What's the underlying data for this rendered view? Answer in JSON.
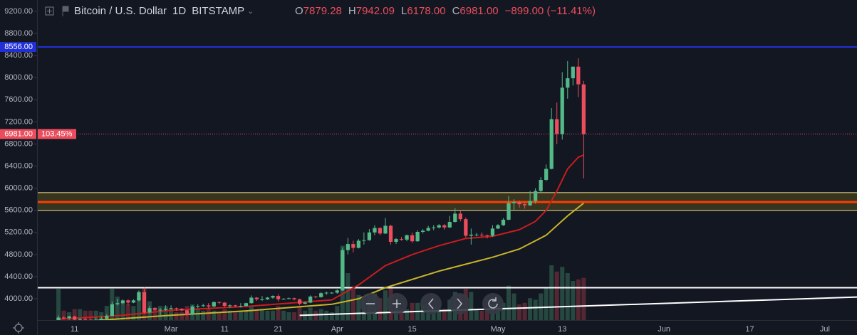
{
  "header": {
    "symbol": "Bitcoin / U.S. Dollar",
    "interval": "1D",
    "exchange": "BITSTAMP",
    "o_label": "O",
    "o": "7879.28",
    "h_label": "H",
    "h": "7942.09",
    "l_label": "L",
    "l": "6178.00",
    "c_label": "C",
    "c": "6981.00",
    "change": "−899.00 (−11.41%)"
  },
  "chart_data": {
    "type": "candlestick",
    "up_color": "#53b987",
    "down_color": "#eb4d5c",
    "ylim": [
      3614,
      9406
    ],
    "yticks": [
      {
        "value": 9200,
        "label": "9200.00"
      },
      {
        "value": 8800,
        "label": "8800.00"
      },
      {
        "value": 8400,
        "label": "8400.00"
      },
      {
        "value": 8000,
        "label": "8000.00"
      },
      {
        "value": 7600,
        "label": "7600.00"
      },
      {
        "value": 7200,
        "label": "7200.00"
      },
      {
        "value": 6800,
        "label": "6800.00"
      },
      {
        "value": 6400,
        "label": "6400.00"
      },
      {
        "value": 6000,
        "label": "6000.00"
      },
      {
        "value": 5600,
        "label": "5600.00"
      },
      {
        "value": 5200,
        "label": "5200.00"
      },
      {
        "value": 4800,
        "label": "4800.00"
      },
      {
        "value": 4400,
        "label": "4400.00"
      },
      {
        "value": 4000,
        "label": "4000.00"
      }
    ],
    "xlim": [
      "Feb 4",
      "Jul 7"
    ],
    "xticks": [
      {
        "value": "Feb 11",
        "label": "11"
      },
      {
        "value": "Mar 1",
        "label": "Mar"
      },
      {
        "value": "Mar 11",
        "label": "11"
      },
      {
        "value": "Mar 21",
        "label": "21"
      },
      {
        "value": "Apr 1",
        "label": "Apr"
      },
      {
        "value": "Apr 15",
        "label": "15"
      },
      {
        "value": "May 1",
        "label": "May"
      },
      {
        "value": "May 13",
        "label": "13"
      },
      {
        "value": "Jun 1",
        "label": "Jun"
      },
      {
        "value": "Jun 17",
        "label": "17"
      },
      {
        "value": "Jul 1",
        "label": "Jul"
      }
    ],
    "x": [
      "Feb 8",
      "Feb 9",
      "Feb 10",
      "Feb 11",
      "Feb 12",
      "Feb 13",
      "Feb 14",
      "Feb 15",
      "Feb 16",
      "Feb 17",
      "Feb 18",
      "Feb 19",
      "Feb 20",
      "Feb 21",
      "Feb 22",
      "Feb 23",
      "Feb 24",
      "Feb 25",
      "Feb 26",
      "Feb 27",
      "Feb 28",
      "Mar 1",
      "Mar 2",
      "Mar 3",
      "Mar 4",
      "Mar 5",
      "Mar 6",
      "Mar 7",
      "Mar 8",
      "Mar 9",
      "Mar 10",
      "Mar 11",
      "Mar 12",
      "Mar 13",
      "Mar 14",
      "Mar 15",
      "Mar 16",
      "Mar 17",
      "Mar 18",
      "Mar 19",
      "Mar 20",
      "Mar 21",
      "Mar 22",
      "Mar 23",
      "Mar 24",
      "Mar 25",
      "Mar 26",
      "Mar 27",
      "Mar 28",
      "Mar 29",
      "Mar 30",
      "Mar 31",
      "Apr 1",
      "Apr 2",
      "Apr 3",
      "Apr 4",
      "Apr 5",
      "Apr 6",
      "Apr 7",
      "Apr 8",
      "Apr 9",
      "Apr 10",
      "Apr 11",
      "Apr 12",
      "Apr 13",
      "Apr 14",
      "Apr 15",
      "Apr 16",
      "Apr 17",
      "Apr 18",
      "Apr 19",
      "Apr 20",
      "Apr 21",
      "Apr 22",
      "Apr 23",
      "Apr 24",
      "Apr 25",
      "Apr 26",
      "Apr 27",
      "Apr 28",
      "Apr 29",
      "Apr 30",
      "May 1",
      "May 2",
      "May 3",
      "May 4",
      "May 5",
      "May 6",
      "May 7",
      "May 8",
      "May 9",
      "May 10",
      "May 11",
      "May 12",
      "May 13",
      "May 14",
      "May 15",
      "May 16",
      "May 17"
    ],
    "open": [
      3420,
      3660,
      3650,
      3680,
      3620,
      3630,
      3620,
      3600,
      3620,
      3640,
      3690,
      3900,
      3920,
      3970,
      3930,
      3970,
      4120,
      3750,
      3830,
      3800,
      3800,
      3820,
      3830,
      3820,
      3790,
      3710,
      3860,
      3870,
      3880,
      3860,
      3940,
      3930,
      3870,
      3880,
      3870,
      3870,
      3920,
      4020,
      3990,
      3990,
      4020,
      4050,
      3990,
      4000,
      4010,
      3990,
      3910,
      3930,
      4040,
      4030,
      4100,
      4110,
      4110,
      4150,
      4880,
      4990,
      4920,
      5050,
      5060,
      5200,
      5280,
      5180,
      5320,
      5030,
      5080,
      5070,
      5150,
      5040,
      5210,
      5230,
      5280,
      5290,
      5330,
      5290,
      5390,
      5540,
      5440,
      5140,
      5160,
      5160,
      5150,
      5140,
      5270,
      5330,
      5430,
      5730,
      5750,
      5710,
      5690,
      5770,
      5950,
      6150,
      6350,
      7250,
      6980,
      7820,
      7990,
      8200,
      7879.28
    ],
    "high": [
      3700,
      3680,
      3690,
      3690,
      3650,
      3660,
      3640,
      3660,
      3680,
      3720,
      3950,
      4000,
      3990,
      3990,
      3990,
      4150,
      4200,
      3870,
      3840,
      3830,
      3880,
      3880,
      3840,
      3830,
      3800,
      3880,
      3900,
      3910,
      3920,
      3950,
      3950,
      3940,
      3900,
      3890,
      3920,
      3930,
      4060,
      4030,
      4050,
      4030,
      4060,
      4080,
      4010,
      4020,
      4020,
      4000,
      3950,
      4060,
      4050,
      4120,
      4130,
      4120,
      4170,
      4930,
      5100,
      5050,
      5080,
      5200,
      5260,
      5330,
      5290,
      5460,
      5340,
      5100,
      5120,
      5160,
      5200,
      5240,
      5260,
      5320,
      5330,
      5350,
      5350,
      5500,
      5640,
      5600,
      5470,
      5270,
      5190,
      5200,
      5160,
      5330,
      5350,
      5460,
      5860,
      5800,
      5780,
      5750,
      5950,
      6000,
      6200,
      6430,
      7450,
      7550,
      8100,
      8300,
      8200,
      8350,
      7942.09
    ],
    "low": [
      3400,
      3630,
      3620,
      3600,
      3570,
      3590,
      3580,
      3590,
      3610,
      3630,
      3680,
      3880,
      3900,
      3880,
      3920,
      3950,
      3730,
      3730,
      3780,
      3690,
      3780,
      3800,
      3780,
      3770,
      3690,
      3700,
      3830,
      3850,
      3820,
      3850,
      3900,
      3850,
      3830,
      3850,
      3840,
      3860,
      3910,
      3960,
      3960,
      3980,
      4000,
      3950,
      3980,
      3990,
      3970,
      3880,
      3900,
      3920,
      4010,
      4020,
      4070,
      4090,
      4090,
      4140,
      4800,
      4840,
      4910,
      4980,
      5050,
      5150,
      5150,
      5170,
      4980,
      4990,
      5050,
      5040,
      5010,
      5030,
      5180,
      5220,
      5240,
      5270,
      5250,
      5280,
      5380,
      5400,
      5110,
      4980,
      5130,
      5120,
      5090,
      5120,
      5260,
      5320,
      5420,
      5590,
      5650,
      5630,
      5680,
      5720,
      5920,
      6130,
      6340,
      6800,
      6880,
      7620,
      7860,
      7650,
      6178
    ],
    "close": [
      3660,
      3650,
      3680,
      3620,
      3630,
      3620,
      3600,
      3620,
      3640,
      3690,
      3900,
      3920,
      3970,
      3930,
      3970,
      4120,
      3750,
      3830,
      3800,
      3800,
      3820,
      3830,
      3820,
      3790,
      3710,
      3860,
      3870,
      3880,
      3860,
      3940,
      3930,
      3870,
      3880,
      3870,
      3870,
      3920,
      4020,
      3990,
      3990,
      4020,
      4050,
      3990,
      4000,
      4010,
      3990,
      3910,
      3930,
      4040,
      4030,
      4100,
      4110,
      4110,
      4150,
      4880,
      4990,
      4920,
      5050,
      5060,
      5200,
      5280,
      5180,
      5320,
      5030,
      5080,
      5070,
      5150,
      5040,
      5210,
      5230,
      5280,
      5290,
      5330,
      5290,
      5390,
      5540,
      5440,
      5140,
      5160,
      5160,
      5150,
      5140,
      5270,
      5330,
      5430,
      5730,
      5750,
      5710,
      5690,
      5770,
      5950,
      6150,
      6350,
      7250,
      6980,
      7820,
      7990,
      8200,
      7880,
      6981
    ],
    "volume": [
      40,
      12,
      10,
      14,
      14,
      12,
      12,
      12,
      10,
      18,
      40,
      30,
      22,
      20,
      18,
      28,
      42,
      24,
      16,
      18,
      18,
      14,
      10,
      10,
      18,
      20,
      14,
      12,
      14,
      12,
      10,
      14,
      12,
      10,
      12,
      12,
      18,
      12,
      14,
      12,
      12,
      18,
      12,
      10,
      10,
      18,
      12,
      16,
      12,
      14,
      12,
      10,
      18,
      95,
      60,
      40,
      32,
      28,
      30,
      34,
      28,
      38,
      42,
      24,
      14,
      14,
      22,
      22,
      20,
      20,
      16,
      14,
      14,
      26,
      36,
      32,
      40,
      36,
      14,
      12,
      16,
      20,
      18,
      22,
      44,
      34,
      20,
      22,
      28,
      26,
      34,
      42,
      70,
      62,
      68,
      60,
      50,
      52,
      54
    ],
    "series": [
      {
        "color": "#c81d1d",
        "x": [
          "Feb 8",
          "Feb 20",
          "Mar 1",
          "Mar 15",
          "Mar 31",
          "Apr 5",
          "Apr 10",
          "Apr 15",
          "Apr 20",
          "Apr 25",
          "Apr 30",
          "May 5",
          "May 8",
          "May 10",
          "May 12",
          "May 14",
          "May 16",
          "May 17"
        ],
        "values": [
          3630,
          3700,
          3790,
          3860,
          3980,
          4250,
          4600,
          4800,
          4960,
          5090,
          5130,
          5250,
          5400,
          5600,
          5950,
          6350,
          6560,
          6600
        ]
      },
      {
        "color": "#c8b42a",
        "x": [
          "Feb 8",
          "Mar 1",
          "Mar 15",
          "Mar 31",
          "Apr 5",
          "Apr 10",
          "Apr 20",
          "Apr 30",
          "May 5",
          "May 10",
          "May 14",
          "May 17"
        ],
        "values": [
          3560,
          3700,
          3780,
          3900,
          4000,
          4200,
          4500,
          4750,
          4900,
          5150,
          5500,
          5730
        ]
      }
    ],
    "levels": [
      {
        "value": 8556,
        "label": "8556.00",
        "color": "#2130d6"
      },
      {
        "value": 6981,
        "label": "6981.00",
        "percent": "103.45%",
        "color": "#eb4d5c",
        "style": "dotted"
      },
      {
        "value": 5750,
        "color": "#ff3d00"
      },
      {
        "value": 4200,
        "color": "#ffffff"
      }
    ],
    "zone": {
      "from": 5600,
      "to": 5920,
      "color": "#f2e08a"
    },
    "trend": {
      "x": [
        "Mar 25",
        "Jul 7"
      ],
      "values": [
        3700,
        4030
      ],
      "color": "#ffffff"
    }
  }
}
